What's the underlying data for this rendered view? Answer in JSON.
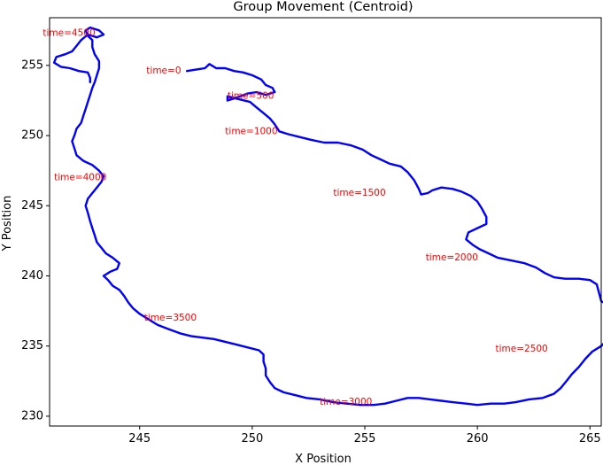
{
  "chart_data": {
    "type": "line",
    "title": "Group Movement (Centroid)",
    "xlabel": "X Position",
    "ylabel": "Y Position",
    "xlim": [
      241.0,
      265.5
    ],
    "ylim": [
      229.3,
      258.4
    ],
    "xticks": [
      245,
      250,
      255,
      260,
      265
    ],
    "yticks": [
      230,
      235,
      240,
      245,
      250,
      255
    ],
    "grid": false,
    "series": [
      {
        "color": "#0000ff",
        "points": [
          [
            247.1,
            254.6
          ],
          [
            247.5,
            254.7
          ],
          [
            247.9,
            254.8
          ],
          [
            248.1,
            255.1
          ],
          [
            248.4,
            254.8
          ],
          [
            248.8,
            254.8
          ],
          [
            249.2,
            254.6
          ],
          [
            249.6,
            254.5
          ],
          [
            250.0,
            254.3
          ],
          [
            250.4,
            254.0
          ],
          [
            250.6,
            253.6
          ],
          [
            250.9,
            253.4
          ],
          [
            251.0,
            253.1
          ],
          [
            250.6,
            252.9
          ],
          [
            250.2,
            253.1
          ],
          [
            249.8,
            253.0
          ],
          [
            249.3,
            252.7
          ],
          [
            248.9,
            252.5
          ],
          [
            248.9,
            252.8
          ],
          [
            249.4,
            252.6
          ],
          [
            249.9,
            252.4
          ],
          [
            250.2,
            252.0
          ],
          [
            250.5,
            251.6
          ],
          [
            250.8,
            251.2
          ],
          [
            251.0,
            250.8
          ],
          [
            251.2,
            250.3
          ],
          [
            251.6,
            250.1
          ],
          [
            252.1,
            249.9
          ],
          [
            252.6,
            249.7
          ],
          [
            253.2,
            249.5
          ],
          [
            253.8,
            249.5
          ],
          [
            254.4,
            249.3
          ],
          [
            254.9,
            249.0
          ],
          [
            255.3,
            248.6
          ],
          [
            255.7,
            248.3
          ],
          [
            256.1,
            248.0
          ],
          [
            256.6,
            247.8
          ],
          [
            256.9,
            247.4
          ],
          [
            257.2,
            246.8
          ],
          [
            257.4,
            246.2
          ],
          [
            257.5,
            245.8
          ],
          [
            257.8,
            245.9
          ],
          [
            258.0,
            246.1
          ],
          [
            258.4,
            246.3
          ],
          [
            258.9,
            246.2
          ],
          [
            259.3,
            246.0
          ],
          [
            259.7,
            245.7
          ],
          [
            260.0,
            245.3
          ],
          [
            260.2,
            244.8
          ],
          [
            260.4,
            244.2
          ],
          [
            260.4,
            243.7
          ],
          [
            260.0,
            243.4
          ],
          [
            259.6,
            243.1
          ],
          [
            259.5,
            242.6
          ],
          [
            259.8,
            242.2
          ],
          [
            260.1,
            241.9
          ],
          [
            260.5,
            241.6
          ],
          [
            260.9,
            241.3
          ],
          [
            261.5,
            241.1
          ],
          [
            262.1,
            240.9
          ],
          [
            262.6,
            240.6
          ],
          [
            263.0,
            240.2
          ],
          [
            263.4,
            239.9
          ],
          [
            263.9,
            239.8
          ],
          [
            264.5,
            239.8
          ],
          [
            265.0,
            239.7
          ],
          [
            265.3,
            239.4
          ],
          [
            265.4,
            238.8
          ],
          [
            265.5,
            238.2
          ],
          [
            265.8,
            237.9
          ],
          [
            266.1,
            237.5
          ],
          [
            266.4,
            237.3
          ],
          [
            266.5,
            237.1
          ],
          [
            266.2,
            236.7
          ],
          [
            266.0,
            236.1
          ],
          [
            265.8,
            235.5
          ],
          [
            265.5,
            235.0
          ],
          [
            265.1,
            234.6
          ],
          [
            264.8,
            234.1
          ],
          [
            264.5,
            233.5
          ],
          [
            264.2,
            233.0
          ],
          [
            264.0,
            232.6
          ],
          [
            263.7,
            232.0
          ],
          [
            263.4,
            231.6
          ],
          [
            262.9,
            231.3
          ],
          [
            262.3,
            231.2
          ],
          [
            261.7,
            231.0
          ],
          [
            261.2,
            230.9
          ],
          [
            260.6,
            230.9
          ],
          [
            260.0,
            230.8
          ],
          [
            259.5,
            230.9
          ],
          [
            258.9,
            231.0
          ],
          [
            258.4,
            231.1
          ],
          [
            257.9,
            231.2
          ],
          [
            257.4,
            231.3
          ],
          [
            256.9,
            231.3
          ],
          [
            256.4,
            231.1
          ],
          [
            255.9,
            230.9
          ],
          [
            255.4,
            230.8
          ],
          [
            254.8,
            230.8
          ],
          [
            254.2,
            230.9
          ],
          [
            253.6,
            231.0
          ],
          [
            253.0,
            231.2
          ],
          [
            252.4,
            231.3
          ],
          [
            251.9,
            231.5
          ],
          [
            251.4,
            231.7
          ],
          [
            251.0,
            232.0
          ],
          [
            250.8,
            232.4
          ],
          [
            250.6,
            232.9
          ],
          [
            250.6,
            233.4
          ],
          [
            250.5,
            233.9
          ],
          [
            250.5,
            234.4
          ],
          [
            250.3,
            234.7
          ],
          [
            249.8,
            234.9
          ],
          [
            249.3,
            235.1
          ],
          [
            248.8,
            235.3
          ],
          [
            248.3,
            235.5
          ],
          [
            247.8,
            235.6
          ],
          [
            247.3,
            235.7
          ],
          [
            246.8,
            235.9
          ],
          [
            246.3,
            236.2
          ],
          [
            245.8,
            236.5
          ],
          [
            245.4,
            236.9
          ],
          [
            245.0,
            237.3
          ],
          [
            244.7,
            237.7
          ],
          [
            244.5,
            238.1
          ],
          [
            244.3,
            238.6
          ],
          [
            244.1,
            239.0
          ],
          [
            243.8,
            239.3
          ],
          [
            243.6,
            239.7
          ],
          [
            243.4,
            240.0
          ],
          [
            243.7,
            240.3
          ],
          [
            244.0,
            240.5
          ],
          [
            244.1,
            240.9
          ],
          [
            243.8,
            241.3
          ],
          [
            243.5,
            241.6
          ],
          [
            243.3,
            242.0
          ],
          [
            243.1,
            242.4
          ],
          [
            243.0,
            242.9
          ],
          [
            242.9,
            243.4
          ],
          [
            242.8,
            243.9
          ],
          [
            242.7,
            244.5
          ],
          [
            242.6,
            245.0
          ],
          [
            242.7,
            245.5
          ],
          [
            242.9,
            245.9
          ],
          [
            243.1,
            246.3
          ],
          [
            243.3,
            246.7
          ],
          [
            243.4,
            247.1
          ],
          [
            243.2,
            247.5
          ],
          [
            242.9,
            247.9
          ],
          [
            242.5,
            248.2
          ],
          [
            242.2,
            248.6
          ],
          [
            242.1,
            249.1
          ],
          [
            242.0,
            249.6
          ],
          [
            242.1,
            250.0
          ],
          [
            242.2,
            250.5
          ],
          [
            242.4,
            250.9
          ],
          [
            242.5,
            251.4
          ],
          [
            242.6,
            251.9
          ],
          [
            242.7,
            252.4
          ],
          [
            242.8,
            252.9
          ],
          [
            242.9,
            253.4
          ],
          [
            243.0,
            253.8
          ],
          [
            243.1,
            254.3
          ],
          [
            243.2,
            254.8
          ],
          [
            243.2,
            255.3
          ],
          [
            243.0,
            255.8
          ],
          [
            242.9,
            256.3
          ],
          [
            242.9,
            256.8
          ],
          [
            242.7,
            257.1
          ],
          [
            242.6,
            257.5
          ],
          [
            242.8,
            257.7
          ],
          [
            243.2,
            257.5
          ],
          [
            243.4,
            257.2
          ],
          [
            243.1,
            257.0
          ],
          [
            242.7,
            257.2
          ],
          [
            242.4,
            256.8
          ],
          [
            242.2,
            256.4
          ],
          [
            242.0,
            256.0
          ],
          [
            241.7,
            255.8
          ],
          [
            241.3,
            255.6
          ],
          [
            241.2,
            255.2
          ],
          [
            241.5,
            254.9
          ],
          [
            241.9,
            254.8
          ],
          [
            242.3,
            254.6
          ],
          [
            242.7,
            254.5
          ],
          [
            242.8,
            254.1
          ],
          [
            242.8,
            253.8
          ]
        ]
      }
    ],
    "annotations": [
      {
        "text": "time=0",
        "x": 245.3,
        "y": 254.6
      },
      {
        "text": "time=500",
        "x": 248.9,
        "y": 252.8
      },
      {
        "text": "time=1000",
        "x": 248.8,
        "y": 250.3
      },
      {
        "text": "time=1500",
        "x": 253.6,
        "y": 245.9
      },
      {
        "text": "time=2000",
        "x": 257.7,
        "y": 241.3
      },
      {
        "text": "time=2500",
        "x": 260.8,
        "y": 234.8
      },
      {
        "text": "time=3000",
        "x": 253.0,
        "y": 231.0
      },
      {
        "text": "time=3500",
        "x": 245.2,
        "y": 237.0
      },
      {
        "text": "time=4000",
        "x": 241.2,
        "y": 247.0
      },
      {
        "text": "time=4500",
        "x": 240.7,
        "y": 257.3
      }
    ]
  }
}
